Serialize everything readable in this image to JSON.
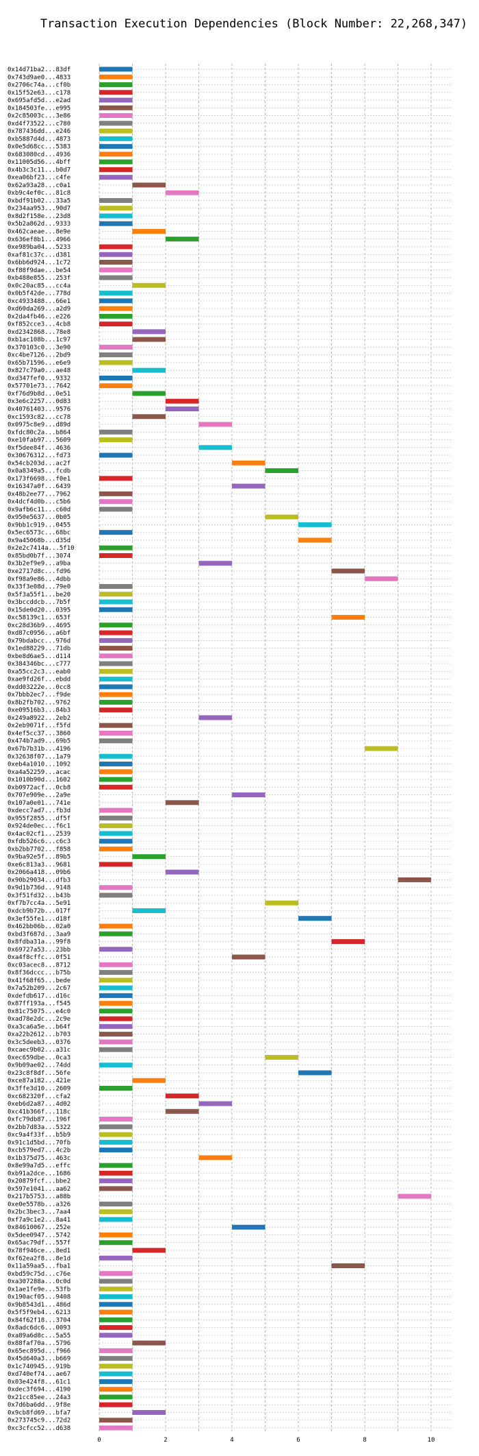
{
  "chart_data": {
    "type": "bar",
    "orientation": "horizontal-gantt",
    "title": "Transaction Execution Dependencies (Block Number: 22,268,347)",
    "xlim": [
      0,
      10.5
    ],
    "xticks": [
      "0",
      "2",
      "4",
      "6",
      "8",
      "10"
    ],
    "grid": true,
    "legend": "none",
    "palette": [
      "#1f77b4",
      "#ff7f0e",
      "#2ca02c",
      "#d62728",
      "#9467bd",
      "#8c564b",
      "#e377c2",
      "#7f7f7f",
      "#bcbd22",
      "#17becf"
    ],
    "transactions": [
      {
        "label": "0x14d71ba2...83df",
        "start": 0,
        "end": 1
      },
      {
        "label": "0x743d9ae0...4833",
        "start": 0,
        "end": 1
      },
      {
        "label": "0x2706c74a...cf0b",
        "start": 0,
        "end": 1
      },
      {
        "label": "0x15f52e63...c178",
        "start": 0,
        "end": 1
      },
      {
        "label": "0x695afd5d...e2ad",
        "start": 0,
        "end": 1
      },
      {
        "label": "0x184503fe...e995",
        "start": 0,
        "end": 1
      },
      {
        "label": "0x2c85003c...3e86",
        "start": 0,
        "end": 1
      },
      {
        "label": "0xd4f73522...c780",
        "start": 0,
        "end": 1
      },
      {
        "label": "0x787436dd...e246",
        "start": 0,
        "end": 1
      },
      {
        "label": "0xb5887d4d...4873",
        "start": 0,
        "end": 1
      },
      {
        "label": "0x0e5d68cc...5383",
        "start": 0,
        "end": 1
      },
      {
        "label": "0x683080cd...4936",
        "start": 0,
        "end": 1
      },
      {
        "label": "0x11005d56...4bff",
        "start": 0,
        "end": 1
      },
      {
        "label": "0x4b3c3c11...b0d7",
        "start": 0,
        "end": 1
      },
      {
        "label": "0xea06bf23...c4fe",
        "start": 0,
        "end": 1
      },
      {
        "label": "0x62a93a28...c0a1",
        "start": 1,
        "end": 2
      },
      {
        "label": "0xb9c4ef0c...81c8",
        "start": 2,
        "end": 3
      },
      {
        "label": "0xbdf91b02...33a5",
        "start": 0,
        "end": 1
      },
      {
        "label": "0x234aa953...90d7",
        "start": 0,
        "end": 1
      },
      {
        "label": "0x8d2f158e...23d8",
        "start": 0,
        "end": 1
      },
      {
        "label": "0x5b2a862d...9333",
        "start": 0,
        "end": 1
      },
      {
        "label": "0x462caeae...8e9e",
        "start": 1,
        "end": 2
      },
      {
        "label": "0x636ef8b1...4966",
        "start": 2,
        "end": 3
      },
      {
        "label": "0xe989ba04...5233",
        "start": 0,
        "end": 1
      },
      {
        "label": "0xaf81c37c...d381",
        "start": 0,
        "end": 1
      },
      {
        "label": "0x6bb6d924...1c72",
        "start": 0,
        "end": 1
      },
      {
        "label": "0xf88f9dae...be54",
        "start": 0,
        "end": 1
      },
      {
        "label": "0xb488e855...253f",
        "start": 0,
        "end": 1
      },
      {
        "label": "0x0c20ac85...cc4a",
        "start": 1,
        "end": 2
      },
      {
        "label": "0x0b5f42de...778d",
        "start": 0,
        "end": 1
      },
      {
        "label": "0xc4933488...66e1",
        "start": 0,
        "end": 1
      },
      {
        "label": "0xd60da269...a2d9",
        "start": 0,
        "end": 1
      },
      {
        "label": "0x2da4fb46...e226",
        "start": 0,
        "end": 1
      },
      {
        "label": "0xf852cce3...4cb8",
        "start": 0,
        "end": 1
      },
      {
        "label": "0xd2342868...78e8",
        "start": 1,
        "end": 2
      },
      {
        "label": "0xb1ac108b...1c97",
        "start": 1,
        "end": 2
      },
      {
        "label": "0x370103c0...3e90",
        "start": 0,
        "end": 1
      },
      {
        "label": "0xc4be7126...2bd9",
        "start": 0,
        "end": 1
      },
      {
        "label": "0x65b71596...e6e9",
        "start": 0,
        "end": 1
      },
      {
        "label": "0x827c79a0...ae48",
        "start": 1,
        "end": 2
      },
      {
        "label": "0xd347fef0...9332",
        "start": 0,
        "end": 1
      },
      {
        "label": "0x57701e73...7642",
        "start": 0,
        "end": 1
      },
      {
        "label": "0xf76d9b8d...0e51",
        "start": 1,
        "end": 2
      },
      {
        "label": "0x3e6c2257...0d83",
        "start": 2,
        "end": 3
      },
      {
        "label": "0x40761403...9576",
        "start": 2,
        "end": 3
      },
      {
        "label": "0xc1593c82...cc78",
        "start": 1,
        "end": 2
      },
      {
        "label": "0x0975c8e9...d89d",
        "start": 3,
        "end": 4
      },
      {
        "label": "0xfdc80c2a...b864",
        "start": 0,
        "end": 1
      },
      {
        "label": "0xe10fab97...5609",
        "start": 0,
        "end": 1
      },
      {
        "label": "0xf5dee84f...4636",
        "start": 3,
        "end": 4
      },
      {
        "label": "0x30676312...fd73",
        "start": 0,
        "end": 1
      },
      {
        "label": "0x54cb203d...ac2f",
        "start": 4,
        "end": 5
      },
      {
        "label": "0x0a8349a5...fcdb",
        "start": 5,
        "end": 6
      },
      {
        "label": "0x173f6698...f0e1",
        "start": 0,
        "end": 1
      },
      {
        "label": "0x16347a0f...6439",
        "start": 4,
        "end": 5
      },
      {
        "label": "0x48b2ee77...7962",
        "start": 0,
        "end": 1
      },
      {
        "label": "0x4dcf4d0b...c5b6",
        "start": 0,
        "end": 1
      },
      {
        "label": "0x9afb6c11...c60d",
        "start": 0,
        "end": 1
      },
      {
        "label": "0x950e5637...0b05",
        "start": 5,
        "end": 6
      },
      {
        "label": "0x9bb1c919...0455",
        "start": 6,
        "end": 7
      },
      {
        "label": "0x5ec6573c...68bc",
        "start": 0,
        "end": 1
      },
      {
        "label": "0x9a45068b...d35d",
        "start": 6,
        "end": 7
      },
      {
        "label": "0x2e2c7414a...5f10",
        "start": 0,
        "end": 1
      },
      {
        "label": "0x85bd0b7f...3074",
        "start": 0,
        "end": 1
      },
      {
        "label": "0x3b2ef9e9...a9ba",
        "start": 3,
        "end": 4
      },
      {
        "label": "0xe2717d8c...fd96",
        "start": 7,
        "end": 8
      },
      {
        "label": "0xf98a9e86...4dbb",
        "start": 8,
        "end": 9
      },
      {
        "label": "0x33f3e08d...79e0",
        "start": 0,
        "end": 1
      },
      {
        "label": "0x5f3a55f1...be20",
        "start": 0,
        "end": 1
      },
      {
        "label": "0x3bccddcb...7b5f",
        "start": 0,
        "end": 1
      },
      {
        "label": "0x15de0d20...0395",
        "start": 0,
        "end": 1
      },
      {
        "label": "0xc58139c1...653f",
        "start": 7,
        "end": 8
      },
      {
        "label": "0xc28d36b9...4695",
        "start": 0,
        "end": 1
      },
      {
        "label": "0xd87c0956...a6bf",
        "start": 0,
        "end": 1
      },
      {
        "label": "0x79bdabcc...976d",
        "start": 0,
        "end": 1
      },
      {
        "label": "0x1ed88229...71db",
        "start": 0,
        "end": 1
      },
      {
        "label": "0xbe8d6ae5...d114",
        "start": 0,
        "end": 1
      },
      {
        "label": "0x384346bc...c777",
        "start": 0,
        "end": 1
      },
      {
        "label": "0xa55cc2c3...eab0",
        "start": 0,
        "end": 1
      },
      {
        "label": "0xae9fd26f...ebdd",
        "start": 0,
        "end": 1
      },
      {
        "label": "0xdd03222e...0cc8",
        "start": 0,
        "end": 1
      },
      {
        "label": "0x7bbb2ec7...f9de",
        "start": 0,
        "end": 1
      },
      {
        "label": "0x8b2fb702...9762",
        "start": 0,
        "end": 1
      },
      {
        "label": "0xe09516b3...84b3",
        "start": 0,
        "end": 1
      },
      {
        "label": "0x249a8922...2eb2",
        "start": 3,
        "end": 4
      },
      {
        "label": "0x2eb9071f...f5fd",
        "start": 0,
        "end": 1
      },
      {
        "label": "0x4ef5cc37...3860",
        "start": 0,
        "end": 1
      },
      {
        "label": "0x474b7ad9...69b5",
        "start": 0,
        "end": 1
      },
      {
        "label": "0x67b7b31b...4196",
        "start": 8,
        "end": 9
      },
      {
        "label": "0x32638f07...1a79",
        "start": 0,
        "end": 1
      },
      {
        "label": "0xeb4a1010...1092",
        "start": 0,
        "end": 1
      },
      {
        "label": "0xa4a52259...acac",
        "start": 0,
        "end": 1
      },
      {
        "label": "0x1010b90d...1602",
        "start": 0,
        "end": 1
      },
      {
        "label": "0xb0972acf...0cb8",
        "start": 0,
        "end": 1
      },
      {
        "label": "0x707e909e...2a9e",
        "start": 4,
        "end": 5
      },
      {
        "label": "0x107a0e01...741e",
        "start": 2,
        "end": 3
      },
      {
        "label": "0xdecc7ad7...fb3d",
        "start": 0,
        "end": 1
      },
      {
        "label": "0x955f2855...df5f",
        "start": 0,
        "end": 1
      },
      {
        "label": "0x924de0ec...f6c1",
        "start": 0,
        "end": 1
      },
      {
        "label": "0x4ac02cf1...2539",
        "start": 0,
        "end": 1
      },
      {
        "label": "0xfdb526c6...c6c3",
        "start": 0,
        "end": 1
      },
      {
        "label": "0xb2bb7702...f858",
        "start": 0,
        "end": 1
      },
      {
        "label": "0x9ba92e5f...89b5",
        "start": 1,
        "end": 2
      },
      {
        "label": "0xe6c813a3...9681",
        "start": 0,
        "end": 1
      },
      {
        "label": "0x2066a418...09b6",
        "start": 2,
        "end": 3
      },
      {
        "label": "0x90b29034...dfb3",
        "start": 9,
        "end": 10
      },
      {
        "label": "0x9d1b736d...9148",
        "start": 0,
        "end": 1
      },
      {
        "label": "0x3f51fd32...b43b",
        "start": 0,
        "end": 1
      },
      {
        "label": "0xf7b7cc4a...5e91",
        "start": 5,
        "end": 6
      },
      {
        "label": "0xdcb9b72b...017f",
        "start": 1,
        "end": 2
      },
      {
        "label": "0x3ef55fe1...d18f",
        "start": 6,
        "end": 7
      },
      {
        "label": "0x462bb06b...02a0",
        "start": 0,
        "end": 1
      },
      {
        "label": "0xbd3f687d...3aa9",
        "start": 0,
        "end": 1
      },
      {
        "label": "0x8fdba31a...99f8",
        "start": 7,
        "end": 8
      },
      {
        "label": "0x69727a53...23bb",
        "start": 0,
        "end": 1
      },
      {
        "label": "0xa4f8cffc...0f51",
        "start": 4,
        "end": 5
      },
      {
        "label": "0xc03acec8...8712",
        "start": 0,
        "end": 1
      },
      {
        "label": "0x8f36dccc...b75b",
        "start": 0,
        "end": 1
      },
      {
        "label": "0x41f68f65...bede",
        "start": 0,
        "end": 1
      },
      {
        "label": "0x7a52b209...2c67",
        "start": 0,
        "end": 1
      },
      {
        "label": "0xdefdb617...d16c",
        "start": 0,
        "end": 1
      },
      {
        "label": "0x87ff193a...f545",
        "start": 0,
        "end": 1
      },
      {
        "label": "0x81c75075...e4c0",
        "start": 0,
        "end": 1
      },
      {
        "label": "0xad78e2dc...2c9e",
        "start": 0,
        "end": 1
      },
      {
        "label": "0xa3ca6a5e...b64f",
        "start": 0,
        "end": 1
      },
      {
        "label": "0xa22b2612...b703",
        "start": 0,
        "end": 1
      },
      {
        "label": "0x3c5deeb3...0376",
        "start": 0,
        "end": 1
      },
      {
        "label": "0xcaec9b02...a31c",
        "start": 0,
        "end": 1
      },
      {
        "label": "0xec659dbe...0ca3",
        "start": 5,
        "end": 6
      },
      {
        "label": "0x9b09ae02...74dd",
        "start": 0,
        "end": 1
      },
      {
        "label": "0x23c8f8df...56fe",
        "start": 6,
        "end": 7
      },
      {
        "label": "0xce87a182...421e",
        "start": 1,
        "end": 2
      },
      {
        "label": "0x3ffe3d10...2609",
        "start": 0,
        "end": 1
      },
      {
        "label": "0xc682320f...cfa2",
        "start": 2,
        "end": 3
      },
      {
        "label": "0xeb6d2a87...4d02",
        "start": 3,
        "end": 4
      },
      {
        "label": "0xc41b366f...118c",
        "start": 2,
        "end": 3
      },
      {
        "label": "0xfc79db87...196f",
        "start": 0,
        "end": 1
      },
      {
        "label": "0x2bb7d83a...5322",
        "start": 0,
        "end": 1
      },
      {
        "label": "0xc9a4f33f...b5b9",
        "start": 0,
        "end": 1
      },
      {
        "label": "0x91c1d5bd...70fb",
        "start": 0,
        "end": 1
      },
      {
        "label": "0xcb579ed7...4c2b",
        "start": 0,
        "end": 1
      },
      {
        "label": "0x1b375d75...463c",
        "start": 3,
        "end": 4
      },
      {
        "label": "0x8e99a7d5...effc",
        "start": 0,
        "end": 1
      },
      {
        "label": "0xb91a2dce...1686",
        "start": 0,
        "end": 1
      },
      {
        "label": "0x20879fcf...bbe2",
        "start": 0,
        "end": 1
      },
      {
        "label": "0x597e1041...aa62",
        "start": 0,
        "end": 1
      },
      {
        "label": "0x217b5753...a88b",
        "start": 9,
        "end": 10
      },
      {
        "label": "0xe0e5578b...a326",
        "start": 0,
        "end": 1
      },
      {
        "label": "0x2bc3bec3...7aa4",
        "start": 0,
        "end": 1
      },
      {
        "label": "0xf7a9c1e2...8a41",
        "start": 0,
        "end": 1
      },
      {
        "label": "0x84610067...252e",
        "start": 4,
        "end": 5
      },
      {
        "label": "0x5dee0947...5742",
        "start": 0,
        "end": 1
      },
      {
        "label": "0x65ac79df...557f",
        "start": 0,
        "end": 1
      },
      {
        "label": "0x78f946ce...8ed1",
        "start": 1,
        "end": 2
      },
      {
        "label": "0xf62ea2f8...8e1d",
        "start": 0,
        "end": 1
      },
      {
        "label": "0x11a59aa5...fba1",
        "start": 7,
        "end": 8
      },
      {
        "label": "0xbd59c75d...c76e",
        "start": 0,
        "end": 1
      },
      {
        "label": "0xa307288a...0c0d",
        "start": 0,
        "end": 1
      },
      {
        "label": "0x1ae1fe9e...53fb",
        "start": 0,
        "end": 1
      },
      {
        "label": "0x190acf05...9408",
        "start": 0,
        "end": 1
      },
      {
        "label": "0x9b8543d1...486d",
        "start": 0,
        "end": 1
      },
      {
        "label": "0x5f5f9eb4...6213",
        "start": 0,
        "end": 1
      },
      {
        "label": "0x84f62f18...3704",
        "start": 0,
        "end": 1
      },
      {
        "label": "0x8adc6dc6...0093",
        "start": 0,
        "end": 1
      },
      {
        "label": "0xa89a6d8c...5a55",
        "start": 0,
        "end": 1
      },
      {
        "label": "0x88faf70a...5796",
        "start": 1,
        "end": 2
      },
      {
        "label": "0x65ec895d...f966",
        "start": 0,
        "end": 1
      },
      {
        "label": "0x45d640a3...b669",
        "start": 0,
        "end": 1
      },
      {
        "label": "0x1c740945...919b",
        "start": 0,
        "end": 1
      },
      {
        "label": "0xd740ef74...ae67",
        "start": 0,
        "end": 1
      },
      {
        "label": "0x03e424f8...61c1",
        "start": 0,
        "end": 1
      },
      {
        "label": "0xdec3f694...4190",
        "start": 0,
        "end": 1
      },
      {
        "label": "0x21cc85ee...24a3",
        "start": 0,
        "end": 1
      },
      {
        "label": "0x7d6ba6dd...9f8e",
        "start": 0,
        "end": 1
      },
      {
        "label": "0x9cb8fd69...bfa7",
        "start": 1,
        "end": 2
      },
      {
        "label": "0x273745c9...72d2",
        "start": 0,
        "end": 1
      },
      {
        "label": "0xc3cfcc52...d638",
        "start": 0,
        "end": 1
      }
    ]
  }
}
